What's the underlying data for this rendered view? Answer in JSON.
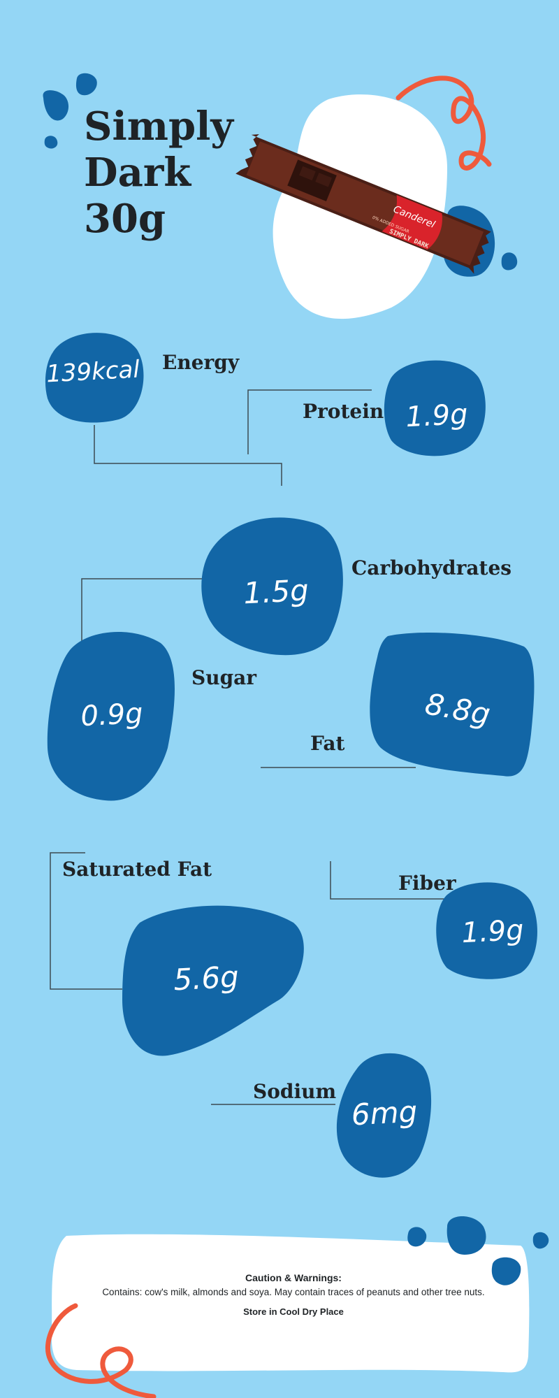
{
  "product": {
    "title_lines": [
      "Simply",
      "Dark",
      "30g"
    ],
    "wrapper": {
      "brand": "Canderel",
      "text": "0% ADDED SUGAR",
      "name": "SIMPLY DARK",
      "colors": {
        "wrapper": "#4a1f16",
        "band": "#d9232b"
      }
    }
  },
  "nutrients": {
    "energy": {
      "label": "Energy",
      "value": "139kcal"
    },
    "protein": {
      "label": "Protein",
      "value": "1.9g"
    },
    "carbohydrates": {
      "label": "Carbohydrates",
      "value": "1.5g"
    },
    "sugar": {
      "label": "Sugar",
      "value": "0.9g"
    },
    "fat": {
      "label": "Fat",
      "value": "8.8g"
    },
    "saturated_fat": {
      "label": "Saturated Fat",
      "value": "5.6g"
    },
    "fiber": {
      "label": "Fiber",
      "value": "1.9g"
    },
    "sodium": {
      "label": "Sodium",
      "value": "6mg"
    }
  },
  "footer": {
    "caution_title": "Caution & Warnings:",
    "contains": "Contains: cow's milk, almonds and soya. May contain traces of peanuts and other tree nuts.",
    "storage": "Store in Cool Dry Place"
  },
  "colors": {
    "background": "#94d6f5",
    "blob": "#1266a6",
    "accent": "#ef5a3c",
    "text": "#1f2326"
  }
}
